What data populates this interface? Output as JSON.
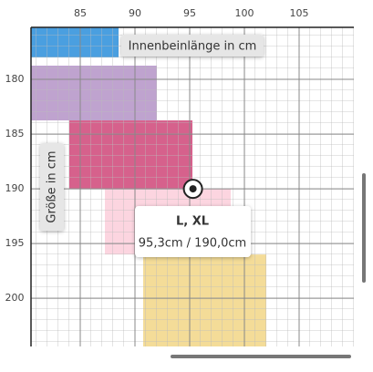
{
  "chart_data": {
    "type": "size-regions",
    "x_label": "Innenbeinlänge in cm",
    "y_label": "Größe in cm",
    "xlim": [
      80.5,
      110
    ],
    "ylim": [
      175.25,
      204.4
    ],
    "y_inverted": true,
    "xticks": [
      85,
      90,
      95,
      100,
      105
    ],
    "yticks": [
      180,
      185,
      190,
      195,
      200
    ],
    "regions": [
      {
        "x": [
          80.5,
          88.5
        ],
        "y": [
          175.25,
          178
        ],
        "color": "#4a9fe0"
      },
      {
        "x": [
          80.5,
          92
        ],
        "y": [
          178.75,
          183.75
        ],
        "color": "#bfa3cf"
      },
      {
        "x": [
          84,
          95.25
        ],
        "y": [
          183.75,
          190
        ],
        "color": "#d6618c"
      },
      {
        "x": [
          87.25,
          98.75
        ],
        "y": [
          190,
          196
        ],
        "color": "#fcd5e0"
      },
      {
        "x": [
          90.75,
          102
        ],
        "y": [
          196,
          204.4
        ],
        "color": "#f4dc98"
      }
    ],
    "marker": {
      "x": 95.3,
      "y": 190.0
    },
    "tooltip": {
      "title": "L, XL",
      "text": "95,3cm / 190,0cm"
    }
  }
}
